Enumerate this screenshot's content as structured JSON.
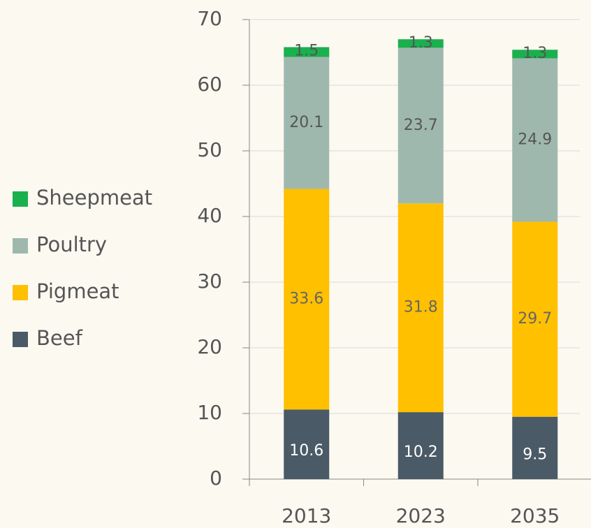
{
  "chart_data": {
    "type": "bar",
    "stacked": true,
    "categories": [
      "2013",
      "2023",
      "2035"
    ],
    "series": [
      {
        "name": "Beef",
        "color": "#4a5a66",
        "values": [
          10.6,
          10.2,
          9.5
        ]
      },
      {
        "name": "Pigmeat",
        "color": "#ffc000",
        "values": [
          33.6,
          31.8,
          29.7
        ]
      },
      {
        "name": "Poultry",
        "color": "#9fb8ae",
        "values": [
          20.1,
          23.7,
          24.9
        ]
      },
      {
        "name": "Sheepmeat",
        "color": "#1ab04e",
        "values": [
          1.5,
          1.3,
          1.3
        ]
      }
    ],
    "ylim": [
      0,
      70
    ],
    "yticks": [
      0,
      10,
      20,
      30,
      40,
      50,
      60,
      70
    ],
    "grid": true,
    "legend": "left"
  }
}
